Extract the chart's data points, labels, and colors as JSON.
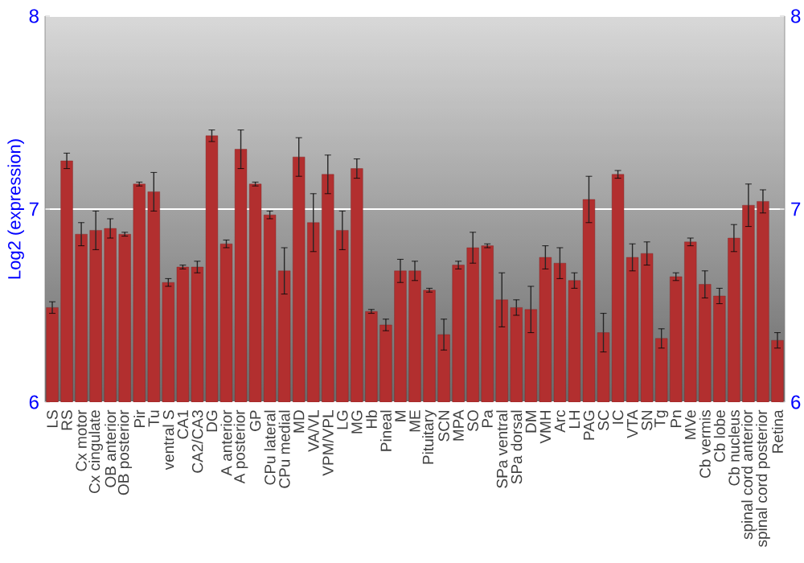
{
  "chart_data": {
    "type": "bar",
    "ylabel": "Log2 (expression)",
    "categories": [
      "LS",
      "RS",
      "Cx motor",
      "Cx cingulate",
      "OB anterior",
      "OB posterior",
      "Pir",
      "Tu",
      "ventral S",
      "CA1",
      "CA2/CA3",
      "DG",
      "A anterior",
      "A posterior",
      "GP",
      "CPu lateral",
      "CPu medial",
      "MD",
      "VA/VL",
      "VPM/VPL",
      "LG",
      "MG",
      "Hb",
      "Pineal",
      "M",
      "ME",
      "Pituitary",
      "SCN",
      "MPA",
      "SO",
      "Pa",
      "SPa ventral",
      "SPa dorsal",
      "DM",
      "VMH",
      "Arc",
      "LH",
      "PAG",
      "SC",
      "IC",
      "VTA",
      "SN",
      "Tg",
      "Pn",
      "MVe",
      "Cb vermis",
      "Cb lobe",
      "Cb nucleus",
      "spinal cord anterior",
      "spinal cord posterior",
      "Retina"
    ],
    "values": [
      6.49,
      7.25,
      6.87,
      6.89,
      6.9,
      6.87,
      7.13,
      7.09,
      6.62,
      6.7,
      6.7,
      7.38,
      6.82,
      7.31,
      7.13,
      6.97,
      6.68,
      7.27,
      6.93,
      7.18,
      6.89,
      7.21,
      6.47,
      6.4,
      6.68,
      6.68,
      6.58,
      6.35,
      6.71,
      6.8,
      6.81,
      6.53,
      6.49,
      6.48,
      6.75,
      6.72,
      6.63,
      7.05,
      6.36,
      7.18,
      6.75,
      6.77,
      6.33,
      6.65,
      6.83,
      6.61,
      6.55,
      6.85,
      7.02,
      7.04,
      6.32
    ],
    "errors": [
      0.03,
      0.04,
      0.06,
      0.1,
      0.05,
      0.01,
      0.01,
      0.1,
      0.02,
      0.01,
      0.03,
      0.03,
      0.02,
      0.1,
      0.01,
      0.02,
      0.12,
      0.1,
      0.15,
      0.1,
      0.1,
      0.05,
      0.01,
      0.03,
      0.06,
      0.05,
      0.01,
      0.08,
      0.02,
      0.08,
      0.01,
      0.14,
      0.04,
      0.12,
      0.06,
      0.08,
      0.04,
      0.12,
      0.1,
      0.02,
      0.07,
      0.06,
      0.05,
      0.02,
      0.02,
      0.07,
      0.04,
      0.07,
      0.11,
      0.06,
      0.04
    ],
    "color": "#b22f2f",
    "ylim": [
      6,
      8
    ],
    "yticks": [
      6,
      7,
      8
    ],
    "y2lim": [
      6,
      8
    ],
    "y2ticks": [
      6,
      7,
      8
    ],
    "grid": "y"
  }
}
